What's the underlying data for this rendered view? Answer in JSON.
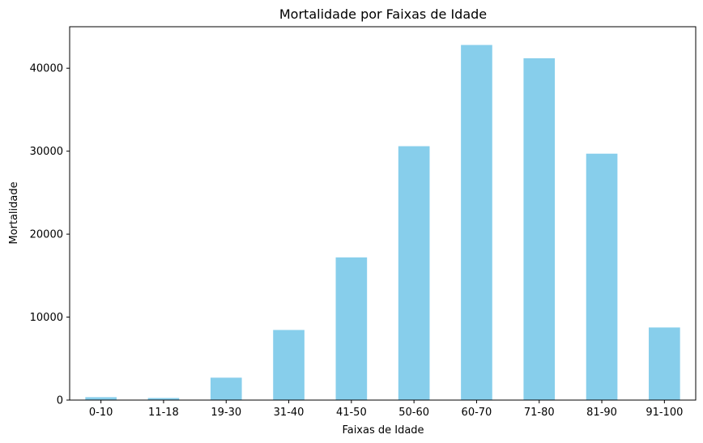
{
  "chart_data": {
    "type": "bar",
    "title": "Mortalidade por Faixas de Idade",
    "xlabel": "Faixas de Idade",
    "ylabel": "Mortalidade",
    "categories": [
      "0-10",
      "11-18",
      "19-30",
      "31-40",
      "41-50",
      "50-60",
      "60-70",
      "71-80",
      "81-90",
      "91-100"
    ],
    "values": [
      350,
      250,
      2700,
      8450,
      17200,
      30600,
      42800,
      41200,
      29700,
      8750
    ],
    "ylim": [
      0,
      45000
    ],
    "yticks": [
      0,
      10000,
      20000,
      30000,
      40000
    ],
    "grid": false,
    "legend": "none",
    "bar_color": "#87ceeb"
  }
}
